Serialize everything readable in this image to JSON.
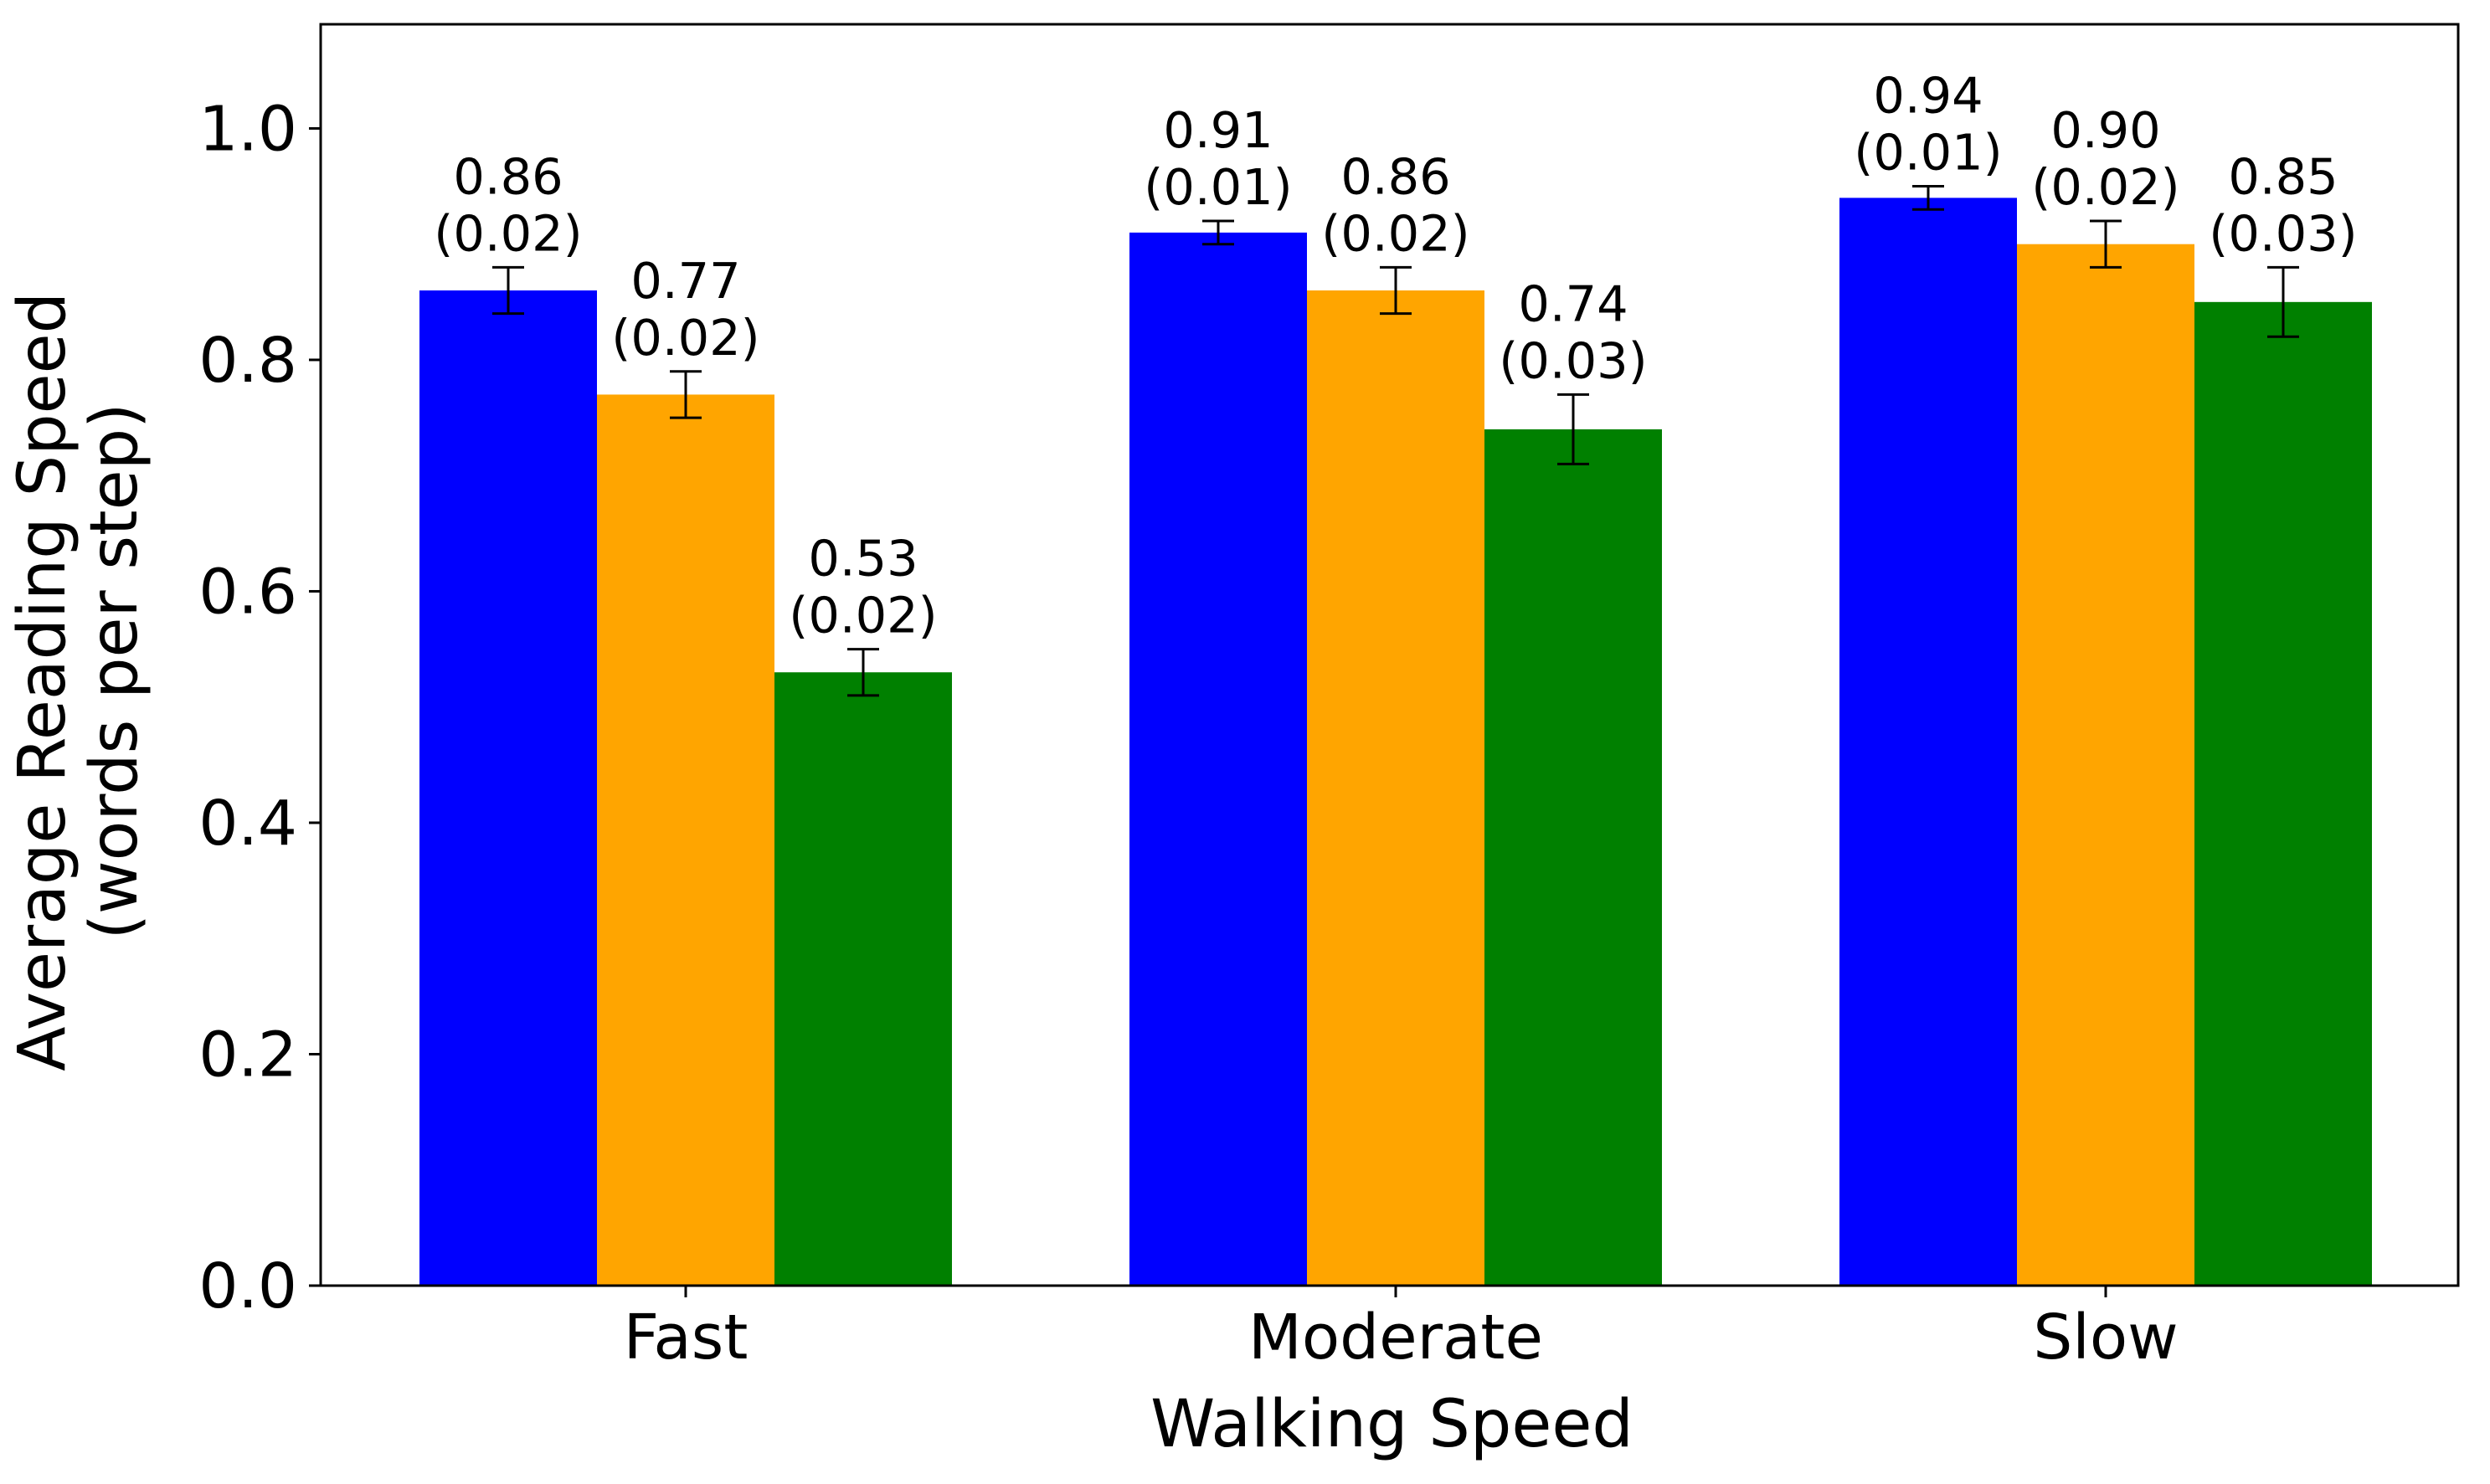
{
  "chart_data": {
    "type": "bar",
    "categories": [
      "Fast",
      "Moderate",
      "Slow"
    ],
    "series": [
      {
        "color": "#0000ff",
        "values": [
          0.86,
          0.91,
          0.94
        ],
        "errors": [
          0.02,
          0.01,
          0.01
        ],
        "labels": [
          [
            "0.86",
            "(0.02)"
          ],
          [
            "0.91",
            "(0.01)"
          ],
          [
            "0.94",
            "(0.01)"
          ]
        ]
      },
      {
        "color": "#ffa500",
        "values": [
          0.77,
          0.86,
          0.9
        ],
        "errors": [
          0.02,
          0.02,
          0.02
        ],
        "labels": [
          [
            "0.77",
            "(0.02)"
          ],
          [
            "0.86",
            "(0.02)"
          ],
          [
            "0.90",
            "(0.02)"
          ]
        ]
      },
      {
        "color": "#008000",
        "values": [
          0.53,
          0.74,
          0.85
        ],
        "errors": [
          0.02,
          0.03,
          0.03
        ],
        "labels": [
          [
            "0.53",
            "(0.02)"
          ],
          [
            "0.74",
            "(0.03)"
          ],
          [
            "0.85",
            "(0.03)"
          ]
        ]
      }
    ],
    "xlabel": "Walking Speed",
    "ylabel_lines": [
      "Average Reading Speed",
      "(words per step)"
    ],
    "ylim": [
      0,
      1.09
    ],
    "yticks": [
      {
        "value": 0.0,
        "label": "0.0"
      },
      {
        "value": 0.2,
        "label": "0.2"
      },
      {
        "value": 0.4,
        "label": "0.4"
      },
      {
        "value": 0.6,
        "label": "0.6"
      },
      {
        "value": 0.8,
        "label": "0.8"
      },
      {
        "value": 1.0,
        "label": "1.0"
      }
    ],
    "grid": false,
    "legend": "none"
  }
}
